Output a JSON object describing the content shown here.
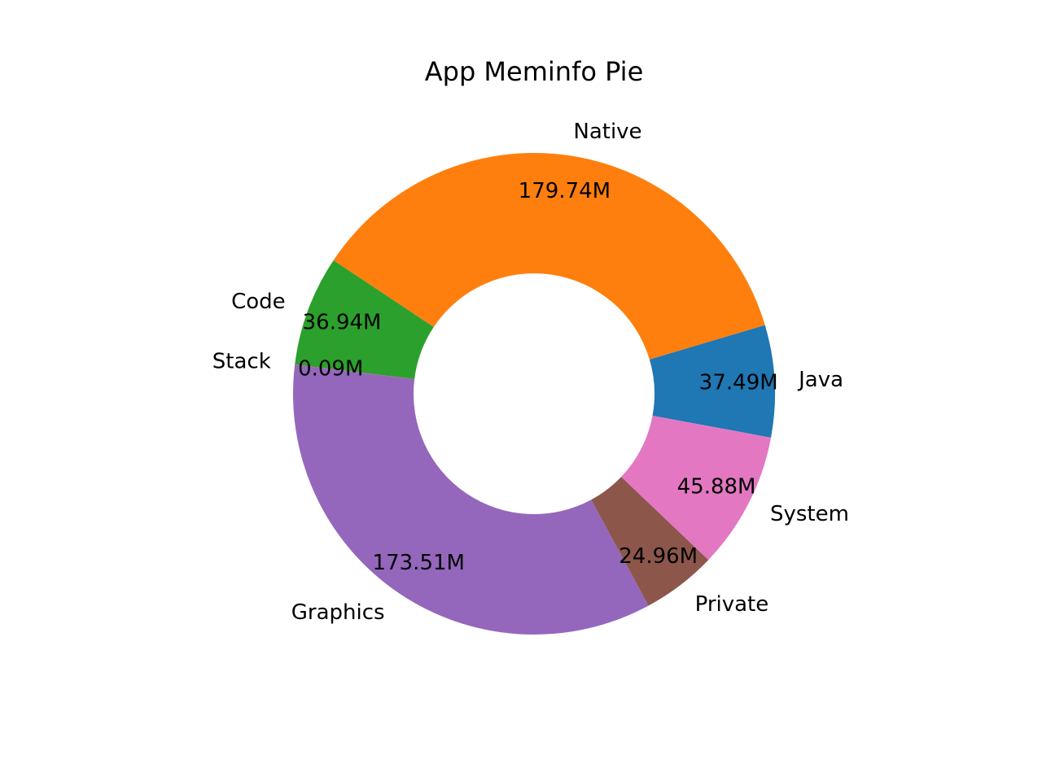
{
  "chart_data": {
    "type": "pie",
    "variant": "donut",
    "title": "App Meminfo Pie",
    "value_unit": "M",
    "slices": [
      {
        "label": "Java",
        "value": 37.49,
        "value_label": "37.49M",
        "color": "#1f77b4"
      },
      {
        "label": "Native",
        "value": 179.74,
        "value_label": "179.74M",
        "color": "#ff7f0e"
      },
      {
        "label": "Code",
        "value": 36.94,
        "value_label": "36.94M",
        "color": "#2ca02c"
      },
      {
        "label": "Stack",
        "value": 0.09,
        "value_label": "0.09M",
        "color": "#d62728"
      },
      {
        "label": "Graphics",
        "value": 173.51,
        "value_label": "173.51M",
        "color": "#9467bd"
      },
      {
        "label": "Private",
        "value": 24.96,
        "value_label": "24.96M",
        "color": "#8c564b"
      },
      {
        "label": "System",
        "value": 45.88,
        "value_label": "45.88M",
        "color": "#e377c2"
      }
    ],
    "legend": "none",
    "grid": false
  }
}
